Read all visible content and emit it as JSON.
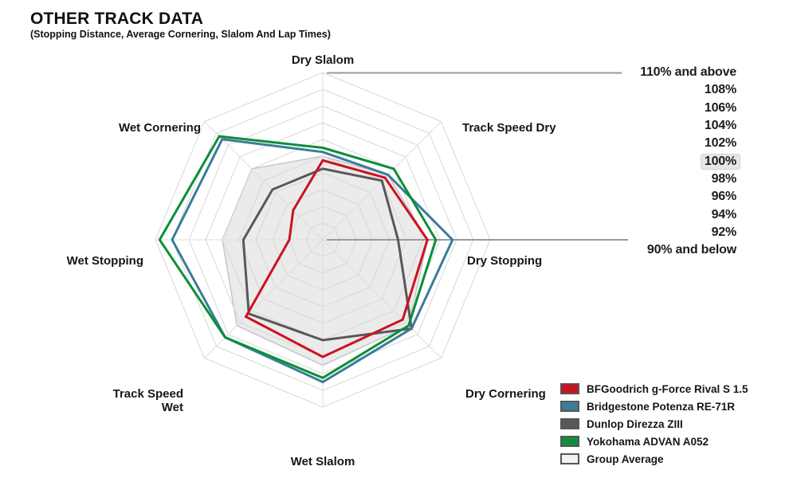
{
  "header": {
    "title": "OTHER TRACK DATA",
    "subtitle": "(Stopping Distance, Average Cornering, Slalom And Lap Times)"
  },
  "scale": {
    "labels": [
      {
        "text": "110% and above",
        "highlight": false
      },
      {
        "text": "108%",
        "highlight": false
      },
      {
        "text": "106%",
        "highlight": false
      },
      {
        "text": "104%",
        "highlight": false
      },
      {
        "text": "102%",
        "highlight": false
      },
      {
        "text": "100%",
        "highlight": true
      },
      {
        "text": "98%",
        "highlight": false
      },
      {
        "text": "96%",
        "highlight": false
      },
      {
        "text": "94%",
        "highlight": false
      },
      {
        "text": "92%",
        "highlight": false
      },
      {
        "text": "90% and below",
        "highlight": false
      }
    ],
    "highlight_color": "#e6e6e6"
  },
  "legend": {
    "items": [
      {
        "label": "BFGoodrich g-Force Rival S 1.5",
        "color": "#cb1220",
        "filled_swatch": true
      },
      {
        "label": "Bridgestone Potenza RE-71R",
        "color": "#3b7c99",
        "filled_swatch": true
      },
      {
        "label": "Dunlop Direzza ZIII",
        "color": "#58585a",
        "filled_swatch": true
      },
      {
        "label": "Yokohama ADVAN A052",
        "color": "#0c8f38",
        "filled_swatch": true
      },
      {
        "label": "Group Average",
        "color": "#f2f2f2",
        "filled_swatch": true
      }
    ]
  },
  "chart_data": {
    "type": "radar",
    "title": "OTHER TRACK DATA",
    "axes": [
      "Dry Slalom",
      "Track Speed Dry",
      "Dry Stopping",
      "Dry Cornering",
      "Wet Slalom",
      "Track Speed Wet",
      "Wet Stopping",
      "Wet Cornering"
    ],
    "value_min": 90,
    "value_max": 110,
    "ring_step_percent": 2,
    "ring_count": 10,
    "units": "% of group average",
    "grid": "octagon rings with radial spokes",
    "legend_position": "bottom-right",
    "series": [
      {
        "name": "Group Average",
        "role": "filled-area",
        "fill": "#e9e9e9",
        "stroke": "#c6c6c6",
        "values": [
          100,
          101,
          102.5,
          104.5,
          105,
          104.5,
          102,
          102
        ]
      },
      {
        "name": "Dunlop Direzza ZIII",
        "role": "line",
        "stroke": "#58585a",
        "values": [
          98.5,
          100,
          99,
          105,
          102,
          102.5,
          99.5,
          98.5
        ]
      },
      {
        "name": "BFGoodrich g-Force Rival S 1.5",
        "role": "line",
        "stroke": "#cb1220",
        "values": [
          99.5,
          100.5,
          102.5,
          103.5,
          104,
          103,
          94,
          95
        ]
      },
      {
        "name": "Bridgestone Potenza RE-71R",
        "role": "line",
        "stroke": "#3b7c99",
        "values": [
          100.5,
          101,
          105.5,
          105,
          107,
          106.5,
          108,
          107
        ]
      },
      {
        "name": "Yokohama ADVAN A052",
        "role": "line",
        "stroke": "#0c8f38",
        "values": [
          101,
          102,
          103.5,
          104.5,
          106.5,
          106.5,
          109.5,
          107.5
        ]
      }
    ],
    "annotations": {
      "top_pointer_targets": "110% and above",
      "center_pointer_targets": "90% and below"
    }
  }
}
